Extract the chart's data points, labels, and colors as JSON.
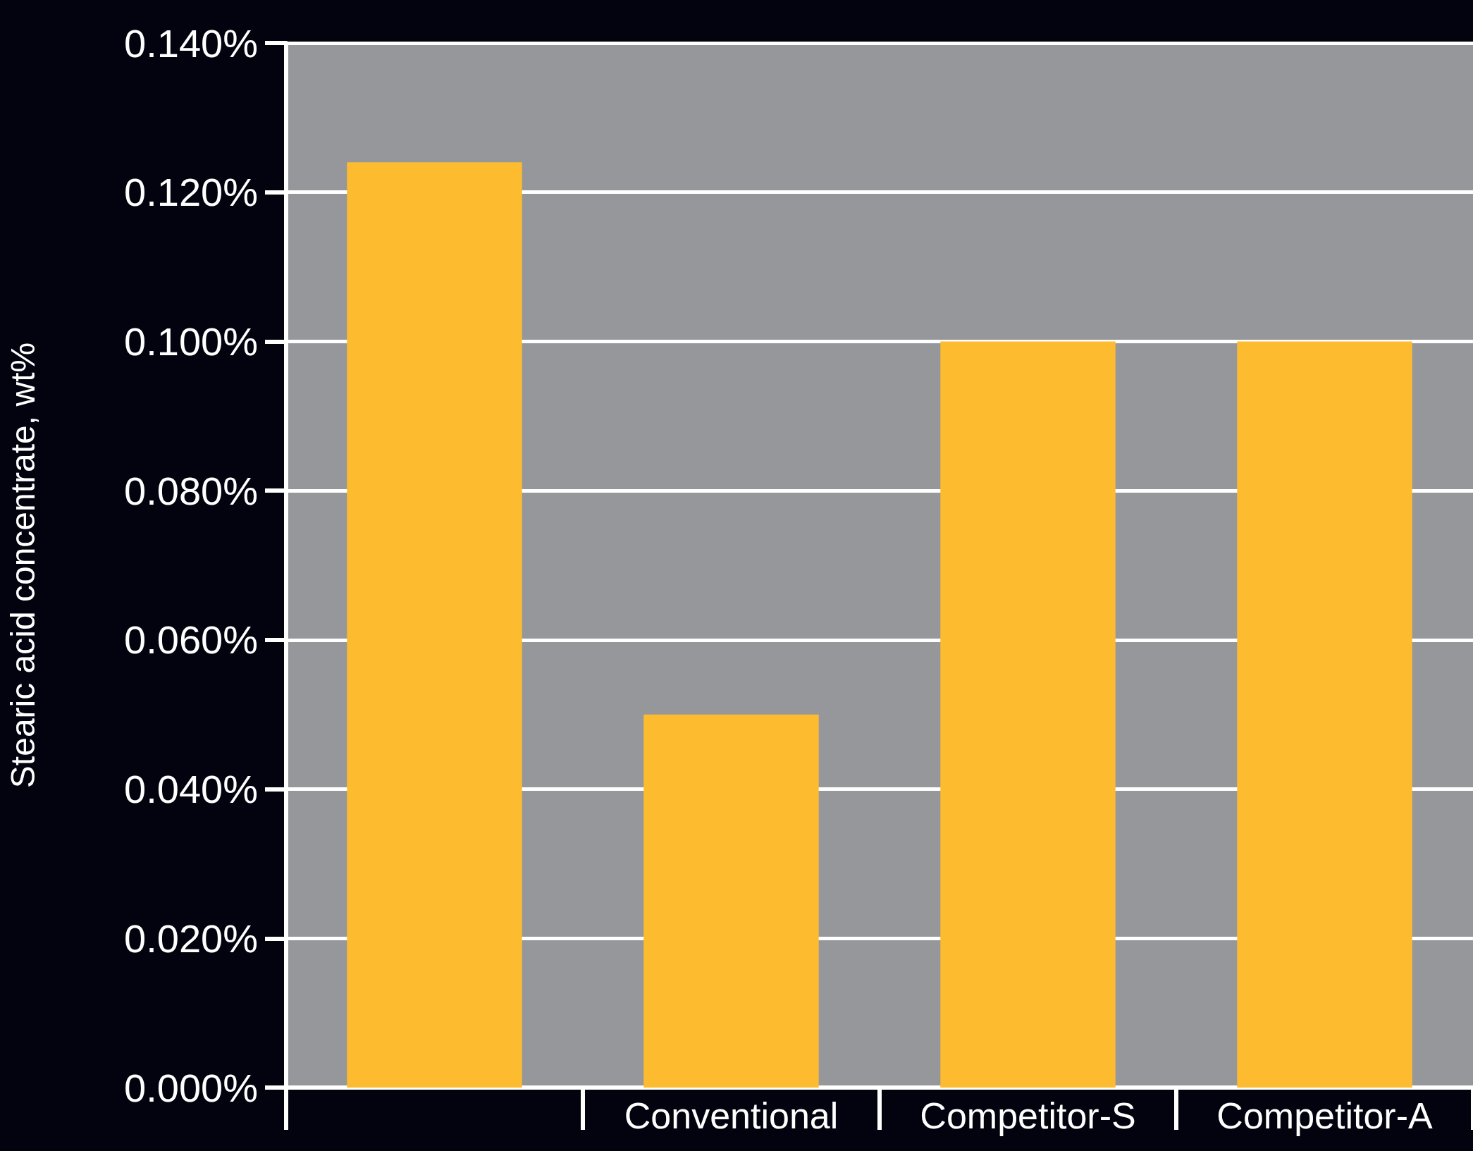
{
  "chart_data": {
    "type": "bar",
    "ylabel": "Stearic acid concentrate, wt%",
    "categories": [
      null,
      "Conventional",
      "Competitor-S",
      "Competitor-A"
    ],
    "values": [
      0.124,
      0.05,
      0.1,
      0.1
    ],
    "color": "#fdbb30",
    "ylim": [
      0,
      0.14
    ],
    "yticks": [
      {
        "value": 0,
        "label": "0.000%"
      },
      {
        "value": 0.02,
        "label": "0.020%"
      },
      {
        "value": 0.04,
        "label": "0.040%"
      },
      {
        "value": 0.06,
        "label": "0.060%"
      },
      {
        "value": 0.08,
        "label": "0.080%"
      },
      {
        "value": 0.1,
        "label": "0.100%"
      },
      {
        "value": 0.12,
        "label": "0.120%"
      },
      {
        "value": 0.14,
        "label": "0.140%"
      }
    ],
    "grid": "y"
  }
}
